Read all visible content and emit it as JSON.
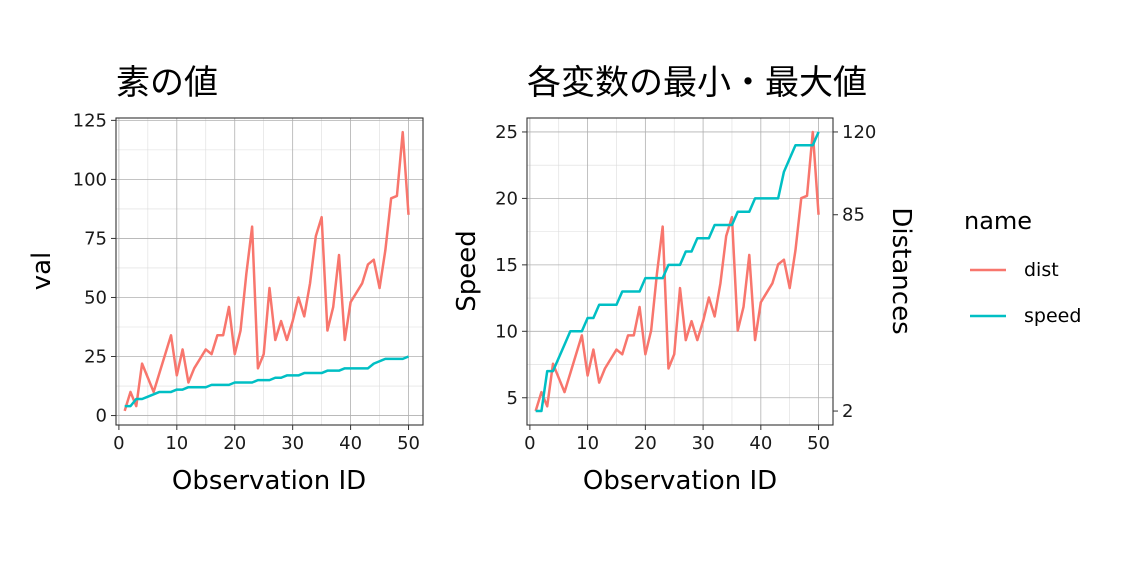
{
  "chart_data": [
    {
      "type": "line",
      "title": "素の値",
      "xlabel": "Observation ID",
      "ylabel": "val",
      "xlim": [
        -0.5,
        52.5
      ],
      "ylim": [
        -4,
        126
      ],
      "xticks": [
        0,
        10,
        20,
        30,
        40,
        50
      ],
      "yticks": [
        0,
        25,
        50,
        75,
        100,
        125
      ],
      "x": [
        1,
        2,
        3,
        4,
        5,
        6,
        7,
        8,
        9,
        10,
        11,
        12,
        13,
        14,
        15,
        16,
        17,
        18,
        19,
        20,
        21,
        22,
        23,
        24,
        25,
        26,
        27,
        28,
        29,
        30,
        31,
        32,
        33,
        34,
        35,
        36,
        37,
        38,
        39,
        40,
        41,
        42,
        43,
        44,
        45,
        46,
        47,
        48,
        49,
        50
      ],
      "series": [
        {
          "name": "dist",
          "color": "#F8766D",
          "values": [
            2,
            10,
            4,
            22,
            16,
            10,
            18,
            26,
            34,
            17,
            28,
            14,
            20,
            24,
            28,
            26,
            34,
            34,
            46,
            26,
            36,
            60,
            80,
            20,
            26,
            54,
            32,
            40,
            32,
            40,
            50,
            42,
            56,
            76,
            84,
            36,
            46,
            68,
            32,
            48,
            52,
            56,
            64,
            66,
            54,
            70,
            92,
            93,
            120,
            85
          ]
        },
        {
          "name": "speed",
          "color": "#00BFC4",
          "values": [
            4,
            4,
            7,
            7,
            8,
            9,
            10,
            10,
            10,
            11,
            11,
            12,
            12,
            12,
            12,
            13,
            13,
            13,
            13,
            14,
            14,
            14,
            14,
            15,
            15,
            15,
            16,
            16,
            17,
            17,
            17,
            18,
            18,
            18,
            18,
            19,
            19,
            19,
            20,
            20,
            20,
            20,
            20,
            22,
            23,
            24,
            24,
            24,
            24,
            25
          ]
        }
      ]
    },
    {
      "type": "line",
      "title": "各変数の最小・最大値",
      "xlabel": "Observation ID",
      "ylabel": "Speed",
      "y2label": "Distances",
      "xlim": [
        -0.5,
        52.5
      ],
      "ylim": [
        2.95,
        26.05
      ],
      "xticks": [
        0,
        10,
        20,
        30,
        40,
        50
      ],
      "yticks": [
        5,
        10,
        15,
        20,
        25
      ],
      "y2ticks": [
        2,
        85,
        120
      ],
      "y2_mapping": {
        "y_range": [
          4,
          25
        ],
        "y2_range": [
          2,
          120
        ]
      },
      "x": [
        1,
        2,
        3,
        4,
        5,
        6,
        7,
        8,
        9,
        10,
        11,
        12,
        13,
        14,
        15,
        16,
        17,
        18,
        19,
        20,
        21,
        22,
        23,
        24,
        25,
        26,
        27,
        28,
        29,
        30,
        31,
        32,
        33,
        34,
        35,
        36,
        37,
        38,
        39,
        40,
        41,
        42,
        43,
        44,
        45,
        46,
        47,
        48,
        49,
        50
      ],
      "series": [
        {
          "name": "dist",
          "color": "#F8766D",
          "axis": "y2",
          "values": [
            2,
            10,
            4,
            22,
            16,
            10,
            18,
            26,
            34,
            17,
            28,
            14,
            20,
            24,
            28,
            26,
            34,
            34,
            46,
            26,
            36,
            60,
            80,
            20,
            26,
            54,
            32,
            40,
            32,
            40,
            50,
            42,
            56,
            76,
            84,
            36,
            46,
            68,
            32,
            48,
            52,
            56,
            64,
            66,
            54,
            70,
            92,
            93,
            120,
            85
          ]
        },
        {
          "name": "speed",
          "color": "#00BFC4",
          "axis": "y",
          "values": [
            4,
            4,
            7,
            7,
            8,
            9,
            10,
            10,
            10,
            11,
            11,
            12,
            12,
            12,
            12,
            13,
            13,
            13,
            13,
            14,
            14,
            14,
            14,
            15,
            15,
            15,
            16,
            16,
            17,
            17,
            17,
            18,
            18,
            18,
            18,
            19,
            19,
            19,
            20,
            20,
            20,
            20,
            20,
            22,
            23,
            24,
            24,
            24,
            24,
            25
          ]
        }
      ]
    }
  ],
  "legend": {
    "title": "name",
    "placement": "right",
    "items": [
      {
        "label": "dist",
        "color": "#F8766D"
      },
      {
        "label": "speed",
        "color": "#00BFC4"
      }
    ]
  }
}
